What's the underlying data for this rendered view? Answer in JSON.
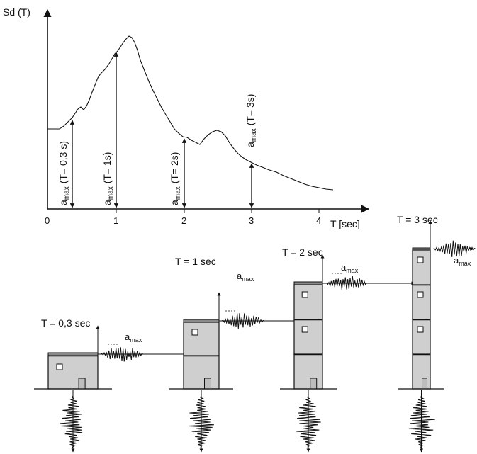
{
  "spectrum": {
    "y_axis_label": "Sd (T)",
    "x_axis_label": "T [sec]",
    "x_ticks": [
      "0",
      "1",
      "2",
      "3",
      "4"
    ],
    "amax_symbol": "a",
    "amax_subscript": "max",
    "amax_annotations": [
      {
        "period": "(T= 0,3 s)"
      },
      {
        "period": "(T= 1s)"
      },
      {
        "period": "(T= 2s)"
      },
      {
        "period": "(T= 3s)"
      }
    ]
  },
  "buildings": [
    {
      "period_label": "T = 0,3 sec",
      "stories": 1
    },
    {
      "period_label": "T = 1 sec",
      "stories": 2
    },
    {
      "period_label": "T = 2 sec",
      "stories": 3
    },
    {
      "period_label": "T = 3 sec",
      "stories": 4
    }
  ],
  "amax_label": {
    "base": "a",
    "sub": "max"
  },
  "colors": {
    "ink": "#111111",
    "building_fill": "#cfcfcf",
    "roof": "#8a8a8a"
  }
}
